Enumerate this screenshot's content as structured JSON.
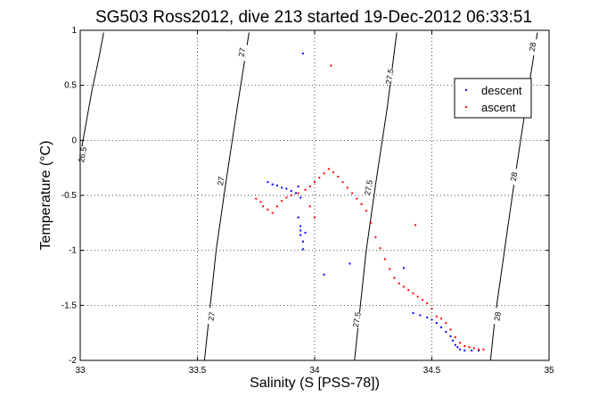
{
  "chart_data": {
    "type": "scatter",
    "title": "SG503 Ross2012, dive 213 started 19-Dec-2012 06:33:51",
    "xlabel": "Salinity (S [PSS-78])",
    "ylabel": "Temperature (°C)",
    "xlim": [
      33,
      35
    ],
    "ylim": [
      -2,
      1
    ],
    "x_ticks": [
      33,
      33.5,
      34,
      34.5,
      35
    ],
    "x_tick_labels": [
      "33",
      "33.5",
      "34",
      "34.5",
      "35"
    ],
    "y_ticks": [
      -2,
      -1.5,
      -1,
      -0.5,
      0,
      0.5,
      1
    ],
    "y_tick_labels": [
      "-2",
      "-1.5",
      "-1",
      "-0.5",
      "0",
      "0.5",
      "1"
    ],
    "grid": true,
    "legend": {
      "position": "top-right",
      "entries": [
        "descent",
        "ascent"
      ]
    },
    "density_contours": [
      {
        "label": "26.5",
        "points": [
          [
            33.0,
            -0.15
          ],
          [
            33.02,
            0.1
          ],
          [
            33.05,
            0.45
          ],
          [
            33.08,
            0.75
          ],
          [
            33.1,
            0.98
          ]
        ],
        "label_at": [
          33.01,
          -0.13
        ]
      },
      {
        "label": "27",
        "points": [
          [
            33.53,
            -2.0
          ],
          [
            33.55,
            -1.6
          ],
          [
            33.58,
            -1.0
          ],
          [
            33.62,
            -0.4
          ],
          [
            33.67,
            0.3
          ],
          [
            33.72,
            0.98
          ]
        ],
        "label_at": [
          33.6,
          -0.37
        ]
      },
      {
        "label": "27.5",
        "points": [
          [
            34.17,
            -2.0
          ],
          [
            34.19,
            -1.6
          ],
          [
            34.22,
            -1.0
          ],
          [
            34.26,
            -0.4
          ],
          [
            34.31,
            0.3
          ],
          [
            34.35,
            0.98
          ]
        ],
        "label_at": [
          34.23,
          -0.43
        ]
      },
      {
        "label": "28",
        "points": [
          [
            34.75,
            -2.0
          ],
          [
            34.77,
            -1.6
          ],
          [
            34.81,
            -1.0
          ],
          [
            34.85,
            -0.4
          ],
          [
            34.9,
            0.3
          ],
          [
            34.95,
            0.98
          ]
        ],
        "label_at": [
          34.85,
          -0.33
        ]
      }
    ],
    "contour_extra_labels": [
      {
        "label": "27",
        "at": [
          33.56,
          -1.6
        ]
      },
      {
        "label": "27.5",
        "at": [
          34.18,
          -1.63
        ]
      },
      {
        "label": "28",
        "at": [
          34.78,
          -1.6
        ]
      },
      {
        "label": "27",
        "at": [
          33.69,
          0.8
        ]
      },
      {
        "label": "27.5",
        "at": [
          34.32,
          0.58
        ]
      },
      {
        "label": "28",
        "at": [
          34.93,
          0.85
        ]
      }
    ],
    "series": [
      {
        "name": "descent",
        "color": "#0000ff",
        "points": [
          [
            33.95,
            0.79
          ],
          [
            33.8,
            -0.38
          ],
          [
            33.82,
            -0.4
          ],
          [
            33.84,
            -0.41
          ],
          [
            33.86,
            -0.43
          ],
          [
            33.88,
            -0.44
          ],
          [
            33.9,
            -0.46
          ],
          [
            33.92,
            -0.48
          ],
          [
            33.93,
            -0.42
          ],
          [
            33.94,
            -0.52
          ],
          [
            33.93,
            -0.7
          ],
          [
            33.94,
            -0.78
          ],
          [
            33.94,
            -0.82
          ],
          [
            33.94,
            -0.86
          ],
          [
            33.95,
            -0.92
          ],
          [
            33.96,
            -0.84
          ],
          [
            33.95,
            -0.99
          ],
          [
            34.04,
            -1.22
          ],
          [
            34.15,
            -1.12
          ],
          [
            34.38,
            -1.16
          ],
          [
            34.42,
            -1.57
          ],
          [
            34.45,
            -1.59
          ],
          [
            34.48,
            -1.61
          ],
          [
            34.5,
            -1.63
          ],
          [
            34.52,
            -1.66
          ],
          [
            34.54,
            -1.7
          ],
          [
            34.56,
            -1.74
          ],
          [
            34.58,
            -1.78
          ],
          [
            34.59,
            -1.82
          ],
          [
            34.6,
            -1.86
          ],
          [
            34.61,
            -1.88
          ],
          [
            34.62,
            -1.9
          ],
          [
            34.64,
            -1.91
          ],
          [
            34.67,
            -1.91
          ],
          [
            34.7,
            -1.91
          ]
        ]
      },
      {
        "name": "ascent",
        "color": "#ff0000",
        "points": [
          [
            34.07,
            0.68
          ],
          [
            33.75,
            -0.53
          ],
          [
            33.77,
            -0.56
          ],
          [
            33.78,
            -0.6
          ],
          [
            33.8,
            -0.63
          ],
          [
            33.82,
            -0.66
          ],
          [
            33.84,
            -0.6
          ],
          [
            33.86,
            -0.55
          ],
          [
            33.88,
            -0.52
          ],
          [
            33.9,
            -0.5
          ],
          [
            33.93,
            -0.48
          ],
          [
            33.96,
            -0.45
          ],
          [
            33.98,
            -0.42
          ],
          [
            34.0,
            -0.38
          ],
          [
            34.02,
            -0.34
          ],
          [
            34.04,
            -0.3
          ],
          [
            34.06,
            -0.26
          ],
          [
            34.08,
            -0.29
          ],
          [
            34.1,
            -0.33
          ],
          [
            34.12,
            -0.38
          ],
          [
            34.14,
            -0.43
          ],
          [
            34.16,
            -0.48
          ],
          [
            34.18,
            -0.53
          ],
          [
            34.2,
            -0.58
          ],
          [
            34.22,
            -0.64
          ],
          [
            34.24,
            -0.75
          ],
          [
            34.26,
            -0.88
          ],
          [
            34.28,
            -0.98
          ],
          [
            34.3,
            -1.08
          ],
          [
            34.32,
            -1.17
          ],
          [
            34.34,
            -1.25
          ],
          [
            34.36,
            -1.3
          ],
          [
            34.38,
            -1.33
          ],
          [
            34.4,
            -1.36
          ],
          [
            34.42,
            -1.39
          ],
          [
            34.44,
            -1.42
          ],
          [
            34.46,
            -1.45
          ],
          [
            34.48,
            -1.48
          ],
          [
            34.5,
            -1.53
          ],
          [
            34.52,
            -1.6
          ],
          [
            34.54,
            -1.62
          ],
          [
            34.56,
            -1.66
          ],
          [
            34.58,
            -1.72
          ],
          [
            34.6,
            -1.79
          ],
          [
            34.62,
            -1.84
          ],
          [
            34.64,
            -1.87
          ],
          [
            34.66,
            -1.88
          ],
          [
            34.68,
            -1.89
          ],
          [
            34.7,
            -1.9
          ],
          [
            34.72,
            -1.9
          ],
          [
            34.0,
            -0.7
          ],
          [
            33.98,
            -0.6
          ],
          [
            34.43,
            -0.77
          ]
        ]
      }
    ]
  }
}
